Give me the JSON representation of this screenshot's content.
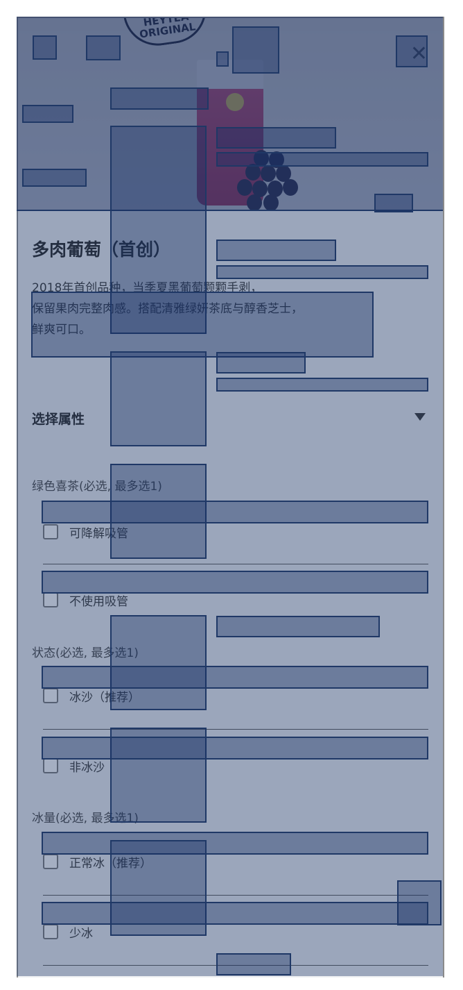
{
  "hero": {
    "logo_text": "HEYTEA ORIGINAL",
    "close_icon": "close-x-icon"
  },
  "product": {
    "title": "多肉葡萄（首创）",
    "description_lines": [
      "2018年首创品种，当季夏黑葡萄颗颗手剥，",
      "保留果肉完整肉感。搭配清雅绿妍茶底与醇香芝士，",
      "鲜爽可口。"
    ]
  },
  "attributes": {
    "section_title": "选择属性",
    "collapse_icon": "caret-down-icon",
    "groups": [
      {
        "label": "绿色喜茶(必选, 最多选1)",
        "options": [
          {
            "label": "可降解吸管",
            "checked": false
          },
          {
            "label": "不使用吸管",
            "checked": false
          }
        ]
      },
      {
        "label": "状态(必选, 最多选1)",
        "options": [
          {
            "label": "冰沙（推荐）",
            "checked": false
          },
          {
            "label": "非冰沙",
            "checked": false
          }
        ]
      },
      {
        "label": "冰量(必选, 最多选1)",
        "options": [
          {
            "label": "正常冰（推荐）",
            "checked": false
          },
          {
            "label": "少冰",
            "checked": false
          }
        ]
      }
    ]
  },
  "colors": {
    "overlay": "#28416e",
    "box_border": "#1f3866"
  }
}
